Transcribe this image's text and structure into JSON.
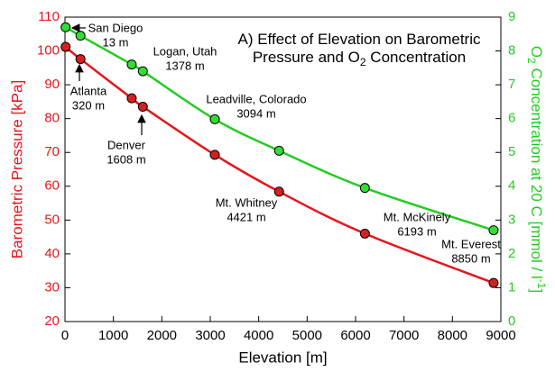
{
  "chart_data": {
    "type": "line",
    "title_lines": [
      [
        "A) Effect of Elevation on Barometric"
      ],
      [
        "Pressure and O",
        "2",
        " Concentration"
      ]
    ],
    "xlabel": "Elevation [m]",
    "ylabel": "Barometric Pressure [kPa]",
    "y2label": [
      "O",
      "2",
      " Concentration at 20 C [mmol / l",
      "-1",
      "]"
    ],
    "x": [
      13,
      320,
      1378,
      1608,
      3094,
      4421,
      6193,
      8850
    ],
    "series": [
      {
        "color": "#e8141b",
        "marker_color": "#d42020",
        "values": [
          101.2,
          97.6,
          86.0,
          83.5,
          69.3,
          58.4,
          46.0,
          31.4
        ]
      },
      {
        "color": "#22cc22",
        "marker_color": "#33dd33",
        "axis": "y2",
        "values": [
          8.7,
          8.45,
          7.6,
          7.4,
          5.98,
          5.05,
          3.95,
          2.7
        ]
      }
    ],
    "annotations": [
      [
        "San Diego",
        "13 m"
      ],
      [
        "Atlanta",
        "320 m"
      ],
      [
        "Logan, Utah",
        "1378 m"
      ],
      [
        "Denver",
        "1608 m"
      ],
      [
        "Leadville, Colorado",
        "3094 m"
      ],
      [
        "Mt. Whitney",
        "4421 m"
      ],
      [
        "Mt. McKinely",
        "6193 m"
      ],
      [
        "Mt. Everest",
        "8850 m"
      ]
    ],
    "xlim": [
      0,
      9000
    ],
    "xticks": [
      0,
      1000,
      2000,
      3000,
      4000,
      5000,
      6000,
      7000,
      8000,
      9000
    ],
    "ylim": [
      20,
      110
    ],
    "yticks": [
      20,
      30,
      40,
      50,
      60,
      70,
      80,
      90,
      100,
      110
    ],
    "y2lim": [
      0,
      9
    ],
    "y2ticks": [
      0,
      1,
      2,
      3,
      4,
      5,
      6,
      7,
      8,
      9
    ]
  }
}
